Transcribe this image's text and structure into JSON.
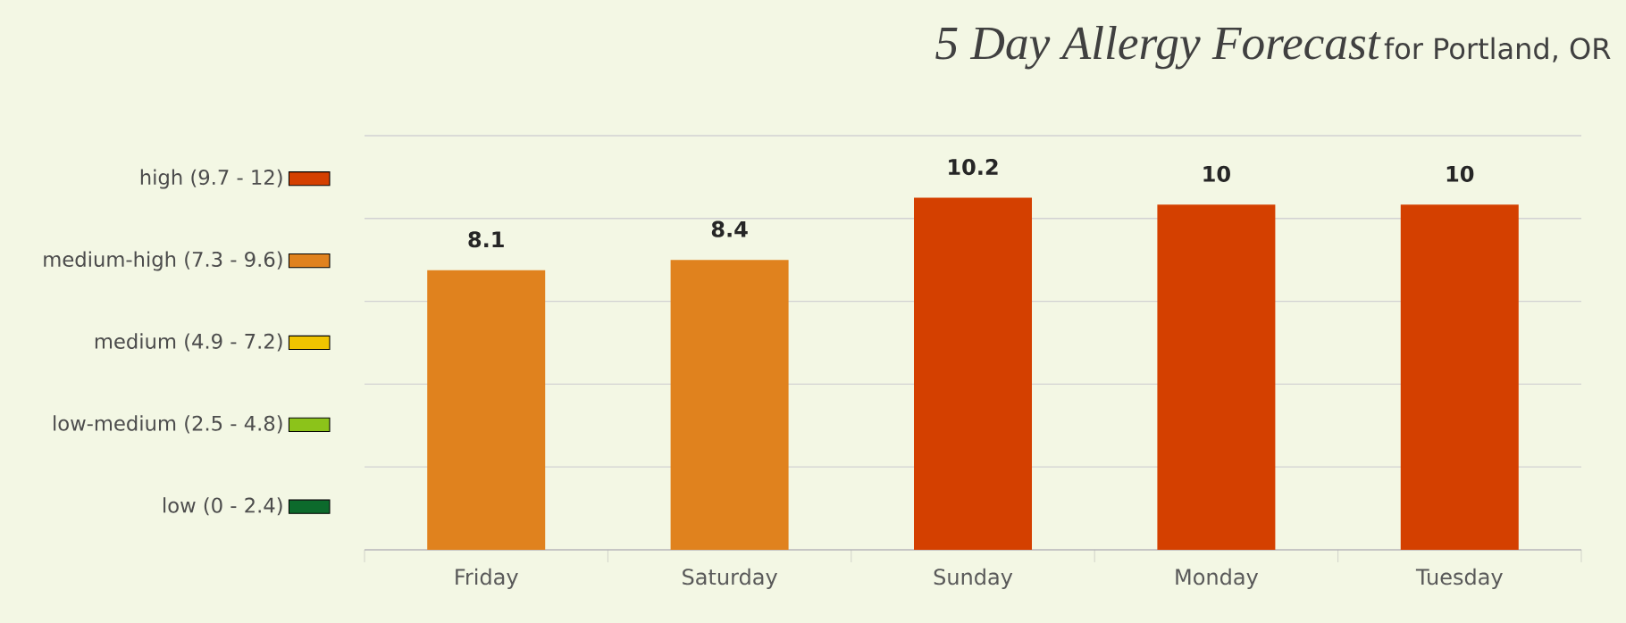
{
  "chart_data": {
    "type": "bar",
    "title": "5 Day Allergy Forecast",
    "subtitle": "for Portland, OR",
    "categories": [
      "Friday",
      "Saturday",
      "Sunday",
      "Monday",
      "Tuesday"
    ],
    "series": [
      {
        "name": "high (9.7 - 12)",
        "color": "#d44000",
        "values": [
          null,
          null,
          10.2,
          10,
          10
        ]
      },
      {
        "name": "medium-high (7.3 - 9.6)",
        "color": "#e0821e",
        "values": [
          8.1,
          8.4,
          null,
          null,
          null
        ]
      },
      {
        "name": "medium (4.9 - 7.2)",
        "color": "#f0c400",
        "values": [
          null,
          null,
          null,
          null,
          null
        ]
      },
      {
        "name": "low-medium (2.5 - 4.8)",
        "color": "#8cc31a",
        "values": [
          null,
          null,
          null,
          null,
          null
        ]
      },
      {
        "name": "low (0 - 2.4)",
        "color": "#0c6a2c",
        "values": [
          null,
          null,
          null,
          null,
          null
        ]
      }
    ],
    "ylim": [
      0,
      12
    ],
    "yticks": [
      {
        "value": 0,
        "label": null
      },
      {
        "value": 2.4,
        "label": null
      },
      {
        "value": 4.8,
        "label": null
      },
      {
        "value": 7.2,
        "label": null
      },
      {
        "value": 9.6,
        "label": null
      },
      {
        "value": 12,
        "label": null
      }
    ],
    "tick_labels": "x",
    "grid": "y",
    "legend": "left",
    "data_labels": true
  }
}
